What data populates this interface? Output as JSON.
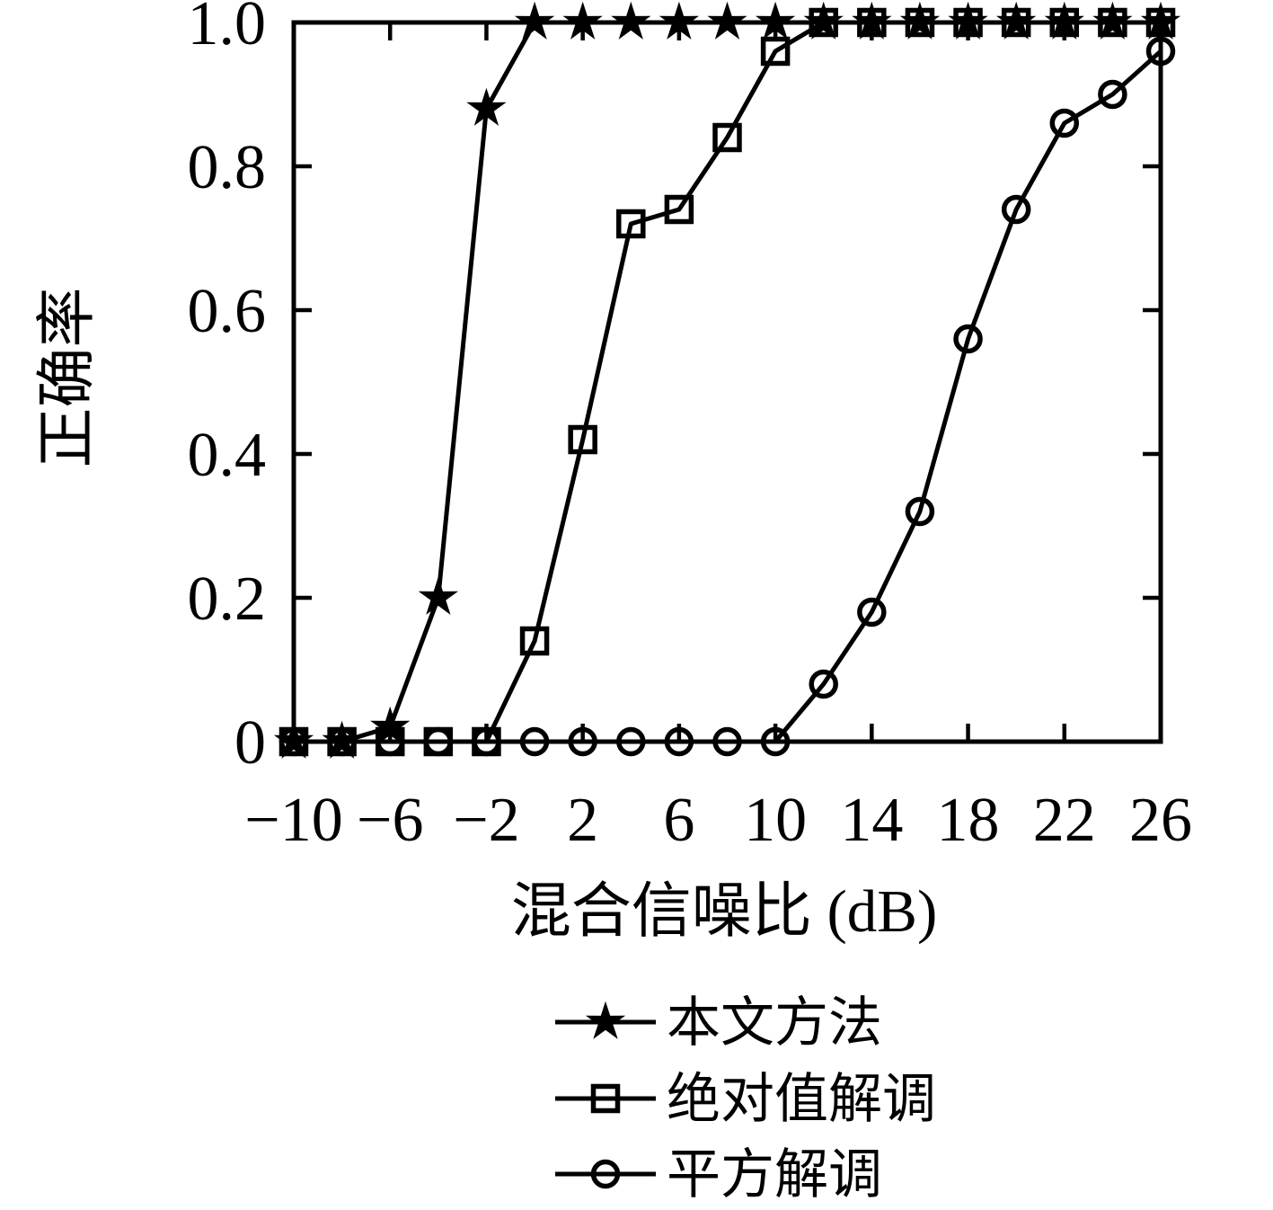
{
  "chart_data": {
    "type": "line",
    "title": "",
    "xlabel": "混合信噪比 (dB)",
    "ylabel": "正确率",
    "xlim": [
      -10,
      26
    ],
    "ylim": [
      0,
      1.0
    ],
    "grid": false,
    "box": true,
    "legend_position": "below-chart",
    "x": [
      -10,
      -8,
      -6,
      -4,
      -2,
      0,
      2,
      4,
      6,
      8,
      10,
      12,
      14,
      16,
      18,
      20,
      22,
      24,
      26
    ],
    "series": [
      {
        "name": "本文方法",
        "marker": "star",
        "marker_fill": "solid",
        "values": [
          0,
          0,
          0.02,
          0.2,
          0.88,
          1.0,
          1.0,
          1.0,
          1.0,
          1.0,
          1.0,
          1.0,
          1.0,
          1.0,
          1.0,
          1.0,
          1.0,
          1.0,
          1.0
        ]
      },
      {
        "name": "绝对值解调",
        "marker": "square",
        "marker_fill": "open",
        "values": [
          0,
          0,
          0,
          0,
          0,
          0.14,
          0.42,
          0.72,
          0.74,
          0.84,
          0.96,
          1.0,
          1.0,
          1.0,
          1.0,
          1.0,
          1.0,
          1.0,
          1.0
        ]
      },
      {
        "name": "平方解调",
        "marker": "circle",
        "marker_fill": "open",
        "values": [
          0,
          0,
          0,
          0,
          0,
          0,
          0,
          0,
          0,
          0,
          0,
          0.08,
          0.18,
          0.32,
          0.56,
          0.74,
          0.86,
          0.9,
          0.96
        ]
      }
    ],
    "x_ticks": {
      "values": [
        -10,
        -6,
        -2,
        2,
        6,
        10,
        14,
        18,
        22,
        26
      ],
      "labels": [
        "−10",
        "−6",
        "−2",
        "2",
        "6",
        "10",
        "14",
        "18",
        "22",
        "26"
      ]
    },
    "y_ticks": {
      "values": [
        0,
        0.2,
        0.4,
        0.6,
        0.8,
        1.0
      ],
      "labels": [
        "0",
        "0.2",
        "0.4",
        "0.6",
        "0.8",
        "1.0"
      ]
    },
    "colors": {
      "line": "#000000",
      "background": "#ffffff"
    }
  }
}
